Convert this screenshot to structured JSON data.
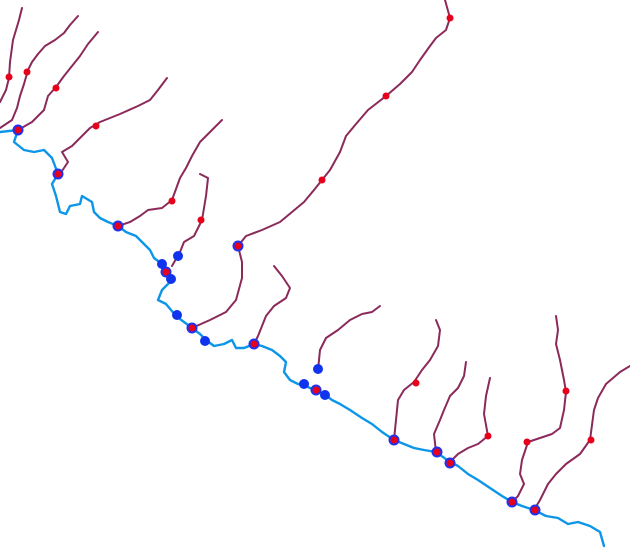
{
  "map": {
    "layers": [
      {
        "name": "main-river",
        "color": "#0d96e8"
      },
      {
        "name": "tributaries",
        "color": "#8b2a5a"
      },
      {
        "name": "confluence-points",
        "fill": "#e8001a",
        "stroke": "#1f33ee"
      },
      {
        "name": "blue-points",
        "color": "#1033ee"
      },
      {
        "name": "red-points",
        "color": "#e8001a"
      }
    ]
  }
}
